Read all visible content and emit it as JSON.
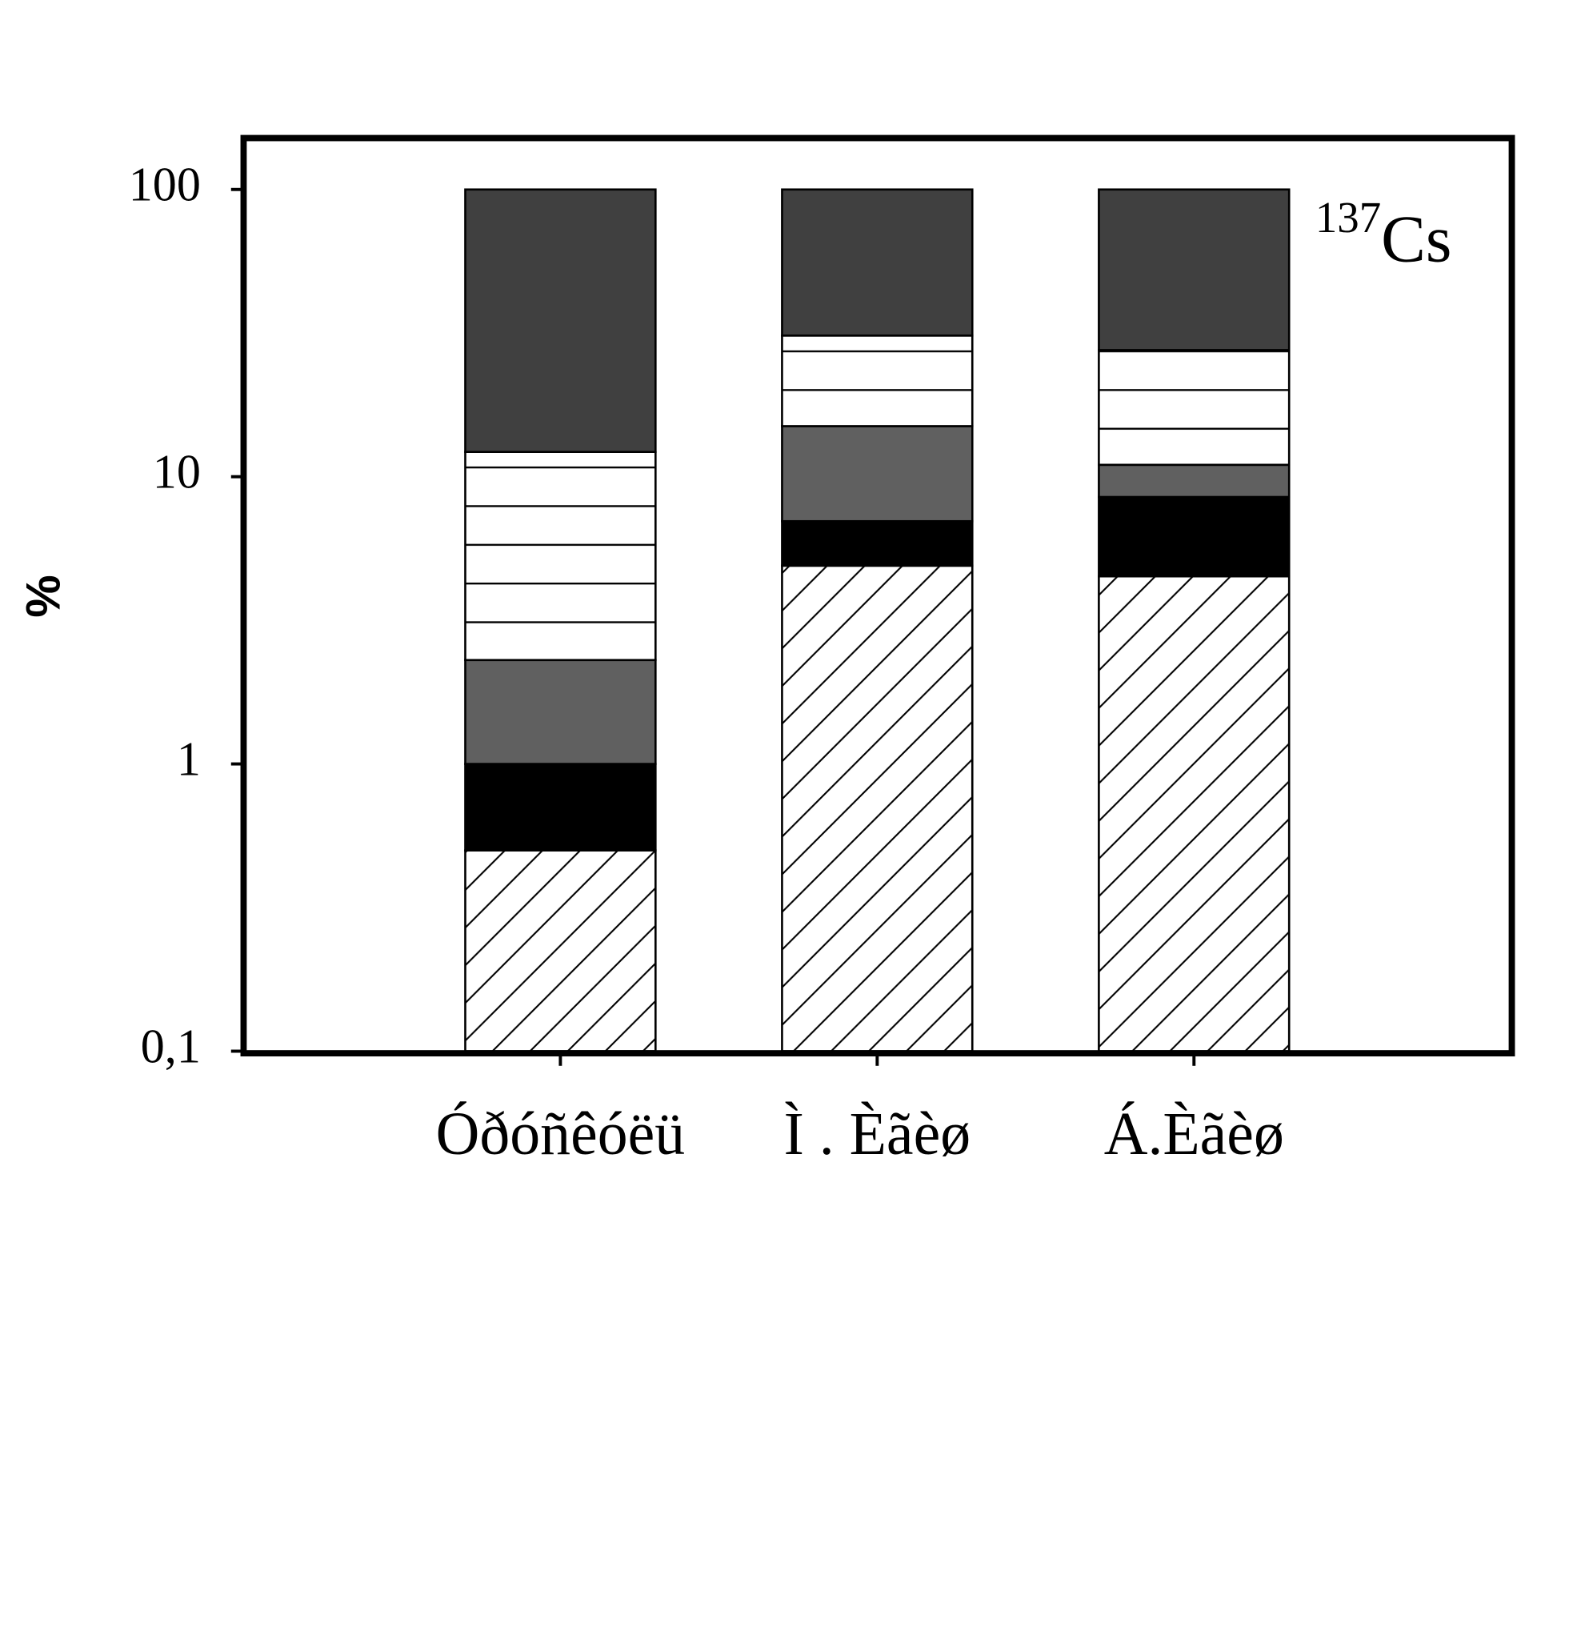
{
  "chart_data": {
    "type": "bar",
    "stacked": true,
    "log_scale": true,
    "y_label": "%",
    "annotation_superscript": "137",
    "annotation": "Cs",
    "categories": [
      "Óðóñêóëü",
      "Ì . Èãèø",
      "Á.Èãèø"
    ],
    "series": [
      {
        "pattern": "hatch",
        "color": "#ffffff",
        "values": [
          0.5,
          4.9,
          4.5
        ]
      },
      {
        "color": "#000000",
        "values": [
          0.5,
          2.1,
          4.0
        ]
      },
      {
        "color": "#606060",
        "values": [
          1.3,
          8,
          2.5
        ]
      },
      {
        "pattern": "hlines",
        "color": "#ffffff",
        "values": [
          9.9,
          16,
          16.6
        ]
      },
      {
        "color": "#404040",
        "values": [
          87.8,
          69,
          72.4
        ]
      }
    ],
    "ylim": [
      0.1,
      151
    ],
    "yticks": [
      {
        "value": 0.1,
        "label": "0,1"
      },
      1,
      10,
      100
    ]
  }
}
